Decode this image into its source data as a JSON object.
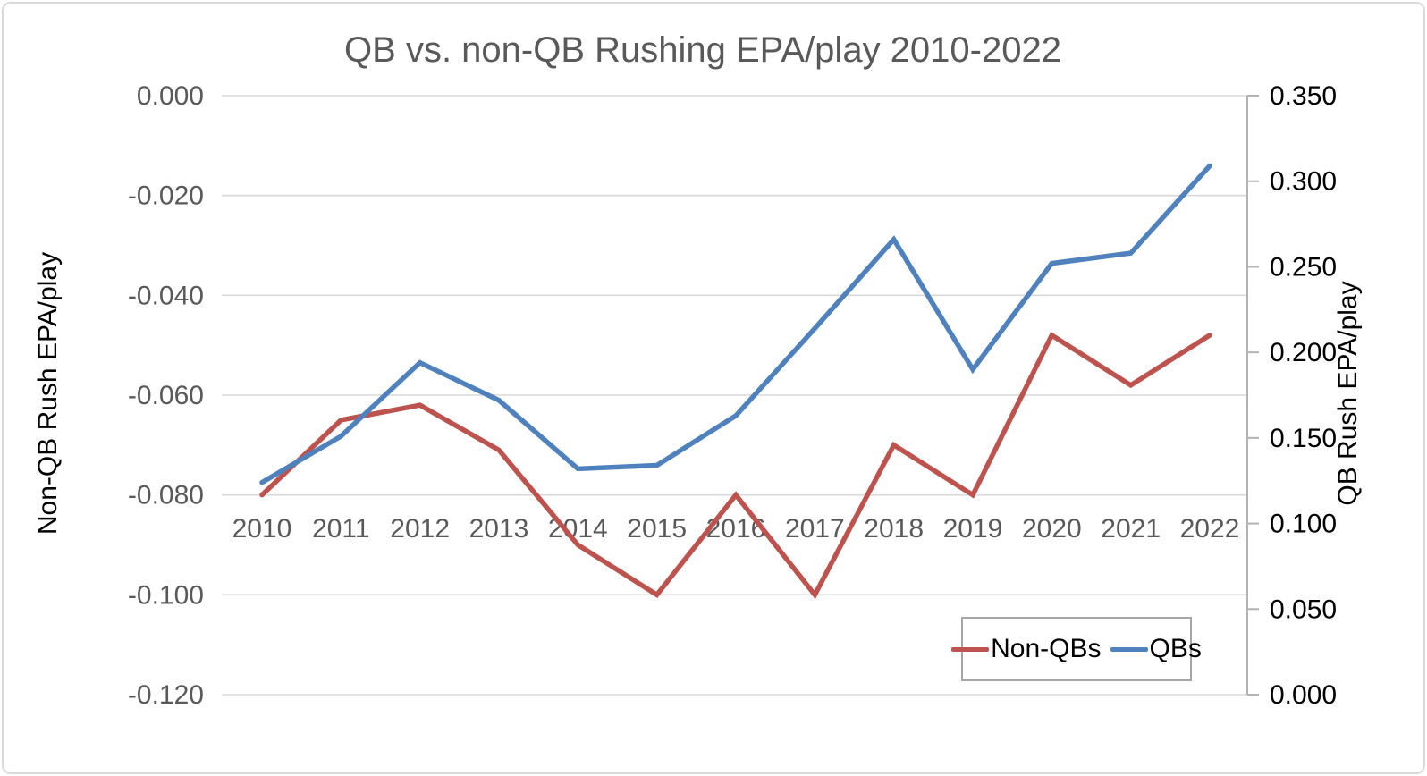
{
  "window": {
    "background": "#ffffff",
    "card_border_color": "#d9d9d9"
  },
  "chart_data": {
    "type": "line",
    "title": "QB vs. non-QB Rushing EPA/play 2010-2022",
    "categories": [
      "2010",
      "2011",
      "2012",
      "2013",
      "2014",
      "2015",
      "2016",
      "2017",
      "2018",
      "2019",
      "2020",
      "2021",
      "2022"
    ],
    "series": [
      {
        "name": "Non-QBs",
        "axis": "left",
        "color": "#bd534e",
        "values": [
          -0.08,
          -0.065,
          -0.062,
          -0.071,
          -0.09,
          -0.1,
          -0.08,
          -0.1,
          -0.07,
          -0.08,
          -0.048,
          -0.058,
          -0.048
        ]
      },
      {
        "name": "QBs",
        "axis": "right",
        "color": "#4f81bd",
        "values": [
          0.124,
          0.151,
          0.194,
          0.172,
          0.132,
          0.134,
          0.163,
          0.214,
          0.266,
          0.19,
          0.252,
          0.258,
          0.309
        ]
      }
    ],
    "left_axis": {
      "title": "Non-QB Rush EPA/play",
      "max": 0.0,
      "min": -0.12,
      "tick_step": 0.02,
      "tick_labels": [
        "0.000",
        "-0.020",
        "-0.040",
        "-0.060",
        "-0.080",
        "-0.100",
        "-0.120"
      ]
    },
    "right_axis": {
      "title": "QB Rush EPA/play",
      "max": 0.35,
      "min": 0.0,
      "tick_step": 0.05,
      "tick_labels": [
        "0.350",
        "0.300",
        "0.250",
        "0.200",
        "0.150",
        "0.100",
        "0.050",
        "0.000"
      ]
    },
    "x_axis": {
      "labels": [
        "2010",
        "2011",
        "2012",
        "2013",
        "2014",
        "2015",
        "2016",
        "2017",
        "2018",
        "2019",
        "2020",
        "2021",
        "2022"
      ]
    },
    "legend": {
      "position": "bottom-right",
      "entries": [
        "Non-QBs",
        "QBs"
      ]
    },
    "grid": true,
    "colors": {
      "title_text": "#595959",
      "left_tick_text": "#595959",
      "right_tick_text": "#000000",
      "year_tick_text": "#595959",
      "gridline": "#d9d9d9",
      "right_axis_line": "#b3b3b3"
    }
  }
}
